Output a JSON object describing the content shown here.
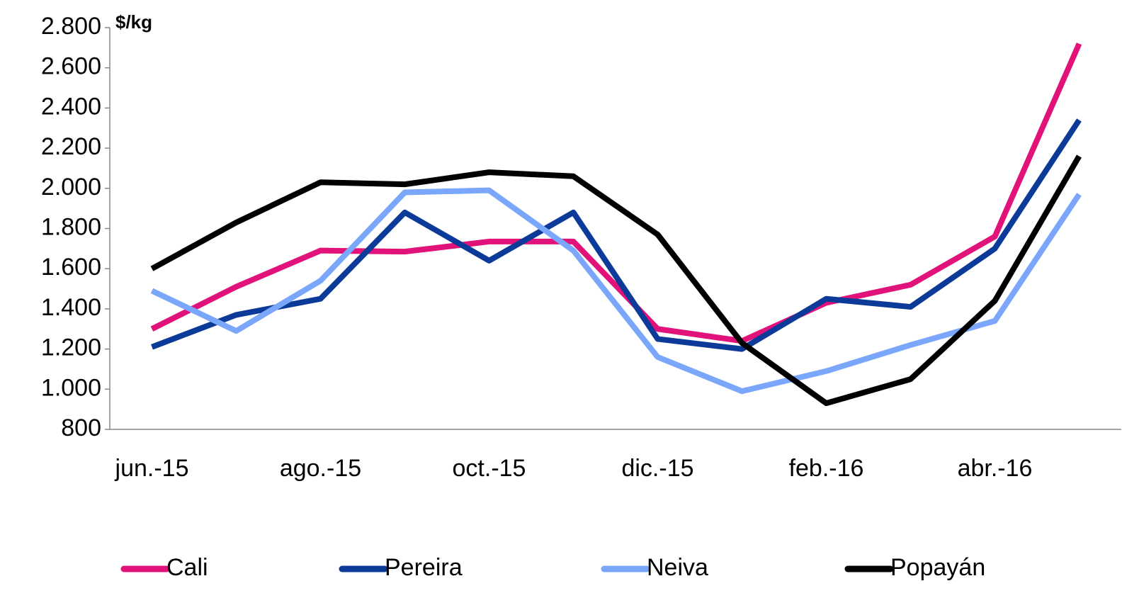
{
  "chart_data": {
    "type": "line",
    "y_label": "$/kg",
    "categories": [
      "jun.-15",
      null,
      "ago.-15",
      null,
      "oct.-15",
      null,
      "dic.-15",
      null,
      "feb.-16",
      null,
      "abr.-16",
      null
    ],
    "series": [
      {
        "name": "Cali",
        "color": "#e2127b",
        "values": [
          1300,
          1510,
          1690,
          1685,
          1735,
          1735,
          1300,
          1240,
          1430,
          1520,
          1760,
          2720
        ]
      },
      {
        "name": "Pereira",
        "color": "#0c3a98",
        "values": [
          1210,
          1370,
          1450,
          1880,
          1640,
          1880,
          1250,
          1200,
          1450,
          1410,
          1700,
          2340
        ]
      },
      {
        "name": "Neiva",
        "color": "#7aa7fb",
        "values": [
          1490,
          1290,
          1540,
          1980,
          1990,
          1690,
          1160,
          990,
          1090,
          1220,
          1340,
          1970
        ]
      },
      {
        "name": "Popayán",
        "color": "#000000",
        "values": [
          1600,
          1830,
          2030,
          2020,
          2080,
          2060,
          1770,
          1230,
          930,
          1050,
          1440,
          2160
        ]
      }
    ],
    "ylim": [
      800,
      2800
    ],
    "yticks": [
      800,
      {
        "value": 1000,
        "label": "1.000"
      },
      {
        "value": 1200,
        "label": "1.200"
      },
      {
        "value": 1400,
        "label": "1.400"
      },
      {
        "value": 1600,
        "label": "1.600"
      },
      {
        "value": 1800,
        "label": "1.800"
      },
      {
        "value": 2000,
        "label": "2.000"
      },
      {
        "value": 2200,
        "label": "2.200"
      },
      {
        "value": 2400,
        "label": "2.400"
      },
      {
        "value": 2600,
        "label": "2.600"
      },
      {
        "value": 2800,
        "label": "2.800"
      }
    ],
    "grid": false,
    "legend": "bottom"
  }
}
